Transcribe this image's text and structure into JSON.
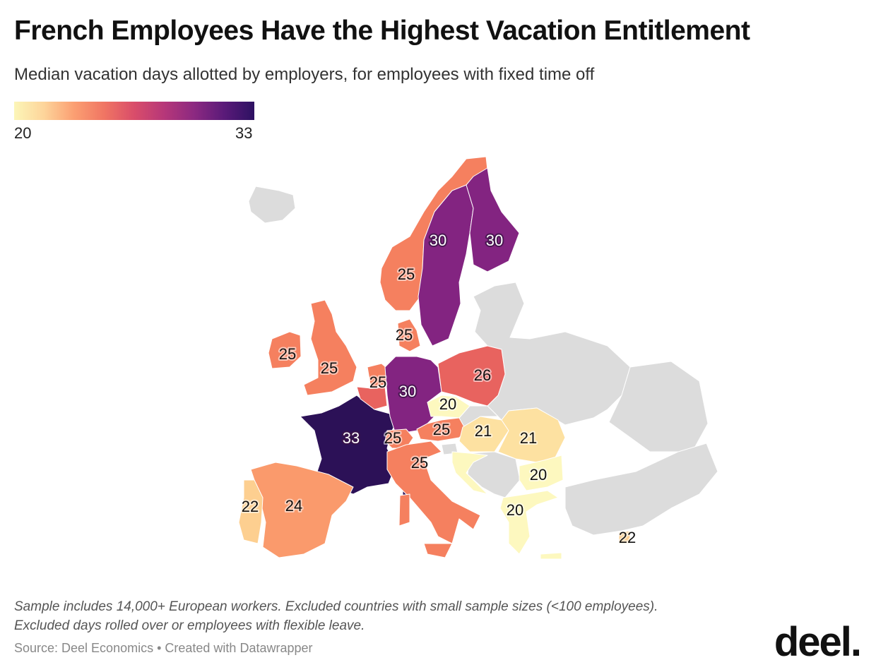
{
  "header": {
    "title": "French Employees Have the Highest Vacation Entitlement",
    "subtitle": "Median vacation days allotted by employers, for employees with fixed time off"
  },
  "legend": {
    "min": "20",
    "max": "33",
    "scale": "magma (light yellow to dark purple)"
  },
  "colors": {
    "v20": "#fdf8bf",
    "v21": "#fde1a1",
    "v22": "#fdcf90",
    "v24": "#fa9a6c",
    "v25": "#f5805f",
    "v26": "#e8635f",
    "v30": "#832481",
    "v33": "#2c1157",
    "no_data": "#dcdcdc"
  },
  "map_data": [
    {
      "country": "France",
      "value": 33,
      "label": "33"
    },
    {
      "country": "Sweden",
      "value": 30,
      "label": "30"
    },
    {
      "country": "Finland",
      "value": 30,
      "label": "30"
    },
    {
      "country": "Germany",
      "value": 30,
      "label": "30"
    },
    {
      "country": "Poland",
      "value": 26,
      "label": "26"
    },
    {
      "country": "Norway",
      "value": 25,
      "label": "25"
    },
    {
      "country": "Denmark",
      "value": 25,
      "label": "25"
    },
    {
      "country": "Ireland",
      "value": 25,
      "label": "25"
    },
    {
      "country": "United Kingdom",
      "value": 25,
      "label": "25"
    },
    {
      "country": "Netherlands",
      "value": 25,
      "label": "25"
    },
    {
      "country": "Switzerland",
      "value": 25,
      "label": "25"
    },
    {
      "country": "Austria",
      "value": 25,
      "label": "25"
    },
    {
      "country": "Italy",
      "value": 25,
      "label": "25"
    },
    {
      "country": "Spain",
      "value": 24,
      "label": "24"
    },
    {
      "country": "Portugal",
      "value": 22,
      "label": "22"
    },
    {
      "country": "Cyprus",
      "value": 22,
      "label": "22"
    },
    {
      "country": "Hungary",
      "value": 21,
      "label": "21"
    },
    {
      "country": "Romania",
      "value": 21,
      "label": "21"
    },
    {
      "country": "Czechia",
      "value": 20,
      "label": "20"
    },
    {
      "country": "Bulgaria",
      "value": 20,
      "label": "20"
    },
    {
      "country": "Greece",
      "value": 20,
      "label": "20"
    }
  ],
  "footer": {
    "note_line1": "Sample includes 14,000+ European workers. Excluded countries with small sample sizes (<100 employees).",
    "note_line2": "Excluded days rolled over or employees with flexible leave.",
    "source": "Source: Deel Economics • Created with Datawrapper",
    "logo": "deel."
  }
}
